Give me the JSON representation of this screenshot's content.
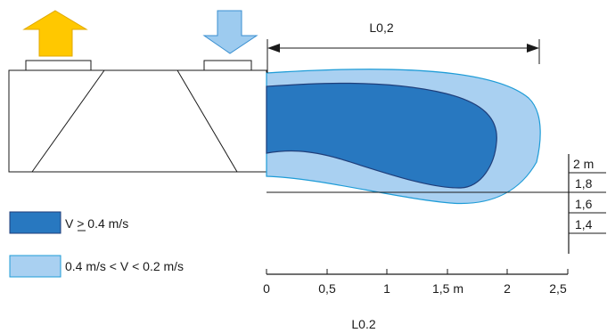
{
  "diagram": {
    "throw_label": "L0,2",
    "caption": "L0.2",
    "legend": {
      "strong_label": "V > 0.4 m/s",
      "weak_label": "0.4 m/s < V < 0.2 m/s"
    },
    "distance_axis": {
      "ticks": [
        "0",
        "0,5",
        "1",
        "1,5 m",
        "2",
        "2,5"
      ]
    },
    "height_scale": {
      "ticks": [
        "2 m",
        "1,8",
        "1,6",
        "1,4"
      ]
    },
    "colors": {
      "exhaust_arrow": "#FFC800",
      "supply_arrow": "#9DCBEF",
      "strong_zone": "#2878C0",
      "weak_zone": "#A9D0F1",
      "outline_dark": "#1F3E7A",
      "outline_light": "#1E9CD7"
    },
    "icons": {
      "exhaust": "arrow-up-icon",
      "supply": "arrow-down-icon"
    }
  }
}
